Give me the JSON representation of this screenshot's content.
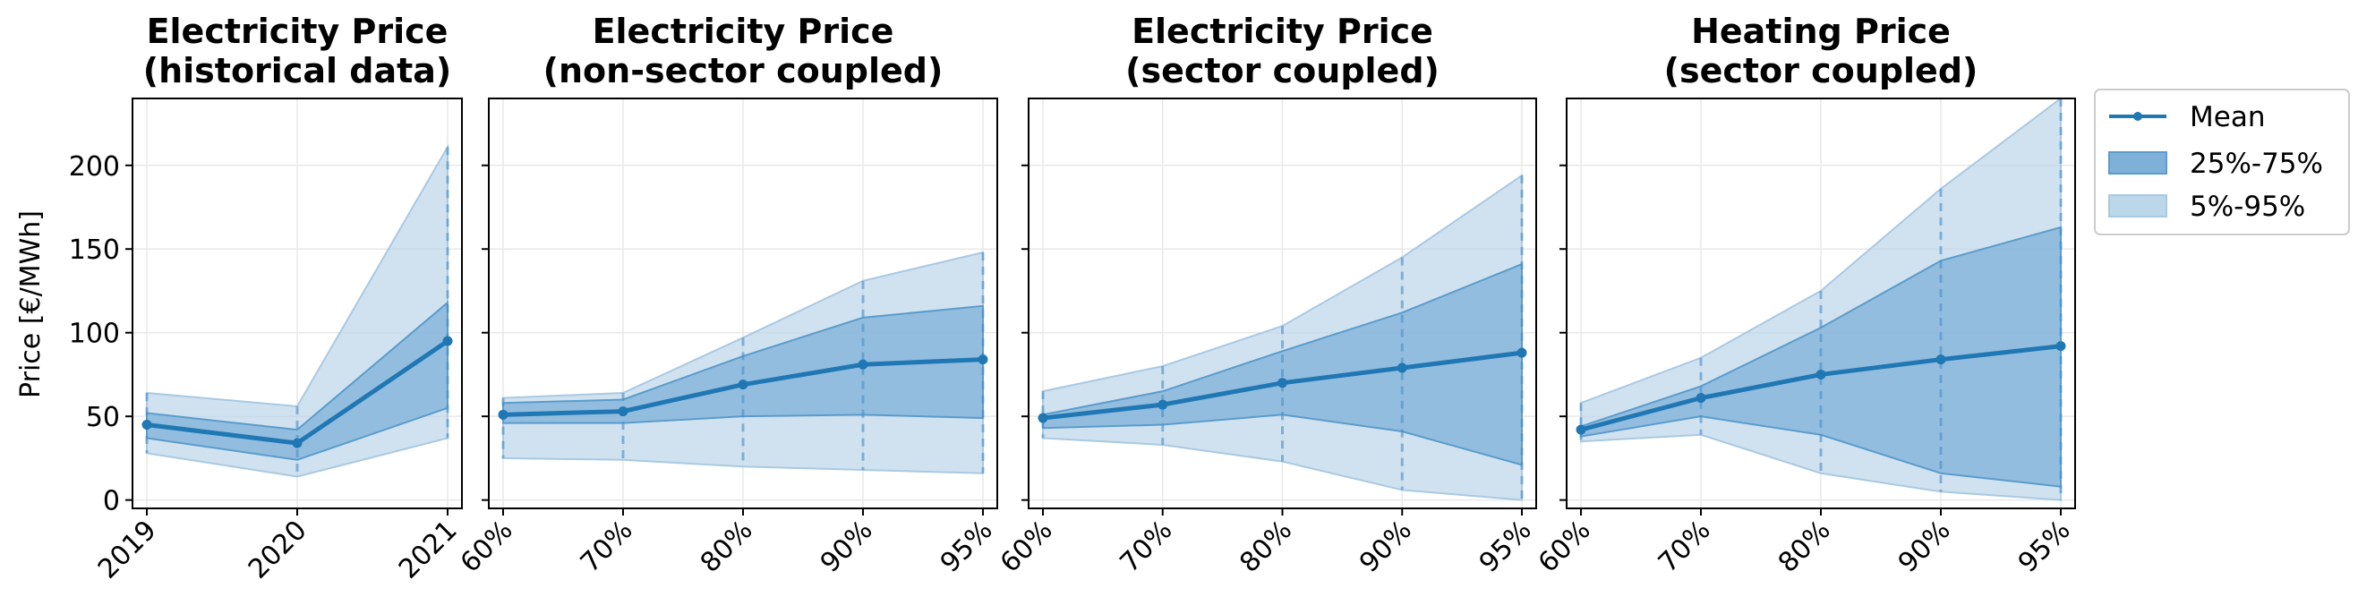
{
  "chart_data": [
    {
      "type": "area",
      "title": [
        "Electricity Price",
        "(historical data)"
      ],
      "categories": [
        "2019",
        "2020",
        "2021"
      ],
      "ylabel": "Price [€/MWh]",
      "ylim": [
        -5,
        240
      ],
      "yticks": [
        0,
        50,
        100,
        150,
        200
      ],
      "grid": true,
      "series": [
        {
          "name": "Mean",
          "values": [
            45,
            34,
            95
          ]
        },
        {
          "name": "25%-75%",
          "lower": [
            37,
            24,
            55
          ],
          "upper": [
            52,
            42,
            118
          ]
        },
        {
          "name": "5%-95%",
          "lower": [
            28,
            14,
            37
          ],
          "upper": [
            64,
            56,
            211
          ]
        }
      ]
    },
    {
      "type": "area",
      "title": [
        "Electricity Price",
        "(non-sector coupled)"
      ],
      "categories": [
        "60%",
        "70%",
        "80%",
        "90%",
        "95%"
      ],
      "ylim": [
        -5,
        240
      ],
      "grid": true,
      "series": [
        {
          "name": "Mean",
          "values": [
            51,
            53,
            69,
            81,
            84
          ]
        },
        {
          "name": "25%-75%",
          "lower": [
            46,
            46,
            50,
            51,
            49
          ],
          "upper": [
            58,
            60,
            86,
            109,
            116
          ]
        },
        {
          "name": "5%-95%",
          "lower": [
            25,
            24,
            20,
            18,
            16
          ],
          "upper": [
            61,
            64,
            97,
            131,
            148
          ]
        }
      ]
    },
    {
      "type": "area",
      "title": [
        "Electricity Price",
        "(sector coupled)"
      ],
      "categories": [
        "60%",
        "70%",
        "80%",
        "90%",
        "95%"
      ],
      "ylim": [
        -5,
        240
      ],
      "grid": true,
      "series": [
        {
          "name": "Mean",
          "values": [
            49,
            57,
            70,
            79,
            88
          ]
        },
        {
          "name": "25%-75%",
          "lower": [
            43,
            45,
            51,
            41,
            21
          ],
          "upper": [
            51,
            65,
            89,
            112,
            141
          ]
        },
        {
          "name": "5%-95%",
          "lower": [
            37,
            33,
            23,
            6,
            0
          ],
          "upper": [
            65,
            80,
            104,
            145,
            194
          ]
        }
      ]
    },
    {
      "type": "area",
      "title": [
        "Heating Price",
        "(sector coupled)"
      ],
      "categories": [
        "60%",
        "70%",
        "80%",
        "90%",
        "95%"
      ],
      "ylim": [
        -5,
        240
      ],
      "grid": true,
      "series": [
        {
          "name": "Mean",
          "values": [
            42,
            61,
            75,
            84,
            92
          ]
        },
        {
          "name": "25%-75%",
          "lower": [
            38,
            50,
            39,
            16,
            8
          ],
          "upper": [
            44,
            68,
            103,
            143,
            163
          ]
        },
        {
          "name": "5%-95%",
          "lower": [
            35,
            39,
            16,
            5,
            0
          ],
          "upper": [
            58,
            85,
            125,
            186,
            240
          ]
        }
      ]
    }
  ],
  "legend": {
    "placement": "outside-right-top",
    "items": [
      {
        "label": "Mean",
        "kind": "line"
      },
      {
        "label": "25%-75%",
        "kind": "band-inner"
      },
      {
        "label": "5%-95%",
        "kind": "band-outer"
      }
    ]
  },
  "colors": {
    "line": "#1f77b4",
    "band_inner": "#7fb0d8",
    "band_outer": "#bcd6ea"
  }
}
